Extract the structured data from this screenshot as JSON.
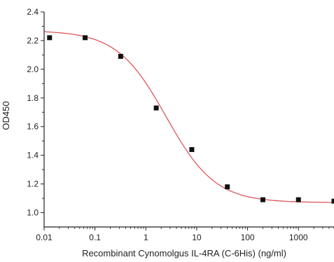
{
  "chart_data": {
    "type": "scatter",
    "title": "",
    "xlabel": "Recombinant Cynomolgus IL-4RA (C-6His) (ng/ml)",
    "ylabel": "OD450",
    "x_scale": "log",
    "xlim": [
      0.01,
      5000
    ],
    "ylim": [
      0.9,
      2.4
    ],
    "x_ticks": [
      {
        "value": 0.01,
        "label": "0.01"
      },
      {
        "value": 0.1,
        "label": "0.1"
      },
      {
        "value": 1,
        "label": "1"
      },
      {
        "value": 10,
        "label": "10"
      },
      {
        "value": 100,
        "label": "100"
      },
      {
        "value": 1000,
        "label": "1000"
      }
    ],
    "y_ticks": [
      {
        "value": 1.0,
        "label": "1.0"
      },
      {
        "value": 1.2,
        "label": "1.2"
      },
      {
        "value": 1.4,
        "label": "1.4"
      },
      {
        "value": 1.6,
        "label": "1.6"
      },
      {
        "value": 1.8,
        "label": "1.8"
      },
      {
        "value": 2.0,
        "label": "2.0"
      },
      {
        "value": 2.2,
        "label": "2.2"
      },
      {
        "value": 2.4,
        "label": "2.4"
      }
    ],
    "grid": false,
    "series": [
      {
        "marker": "square",
        "color": "#111111",
        "x": [
          0.0128,
          0.064,
          0.32,
          1.6,
          8,
          40,
          200,
          1000,
          5000
        ],
        "y": [
          2.22,
          2.22,
          2.09,
          1.73,
          1.44,
          1.18,
          1.09,
          1.09,
          1.08
        ]
      }
    ],
    "fit_curve": {
      "type": "4PL",
      "color": "#e0575a",
      "top": 2.27,
      "bottom": 1.07,
      "ec50": 2.5,
      "hill": 0.9
    }
  }
}
